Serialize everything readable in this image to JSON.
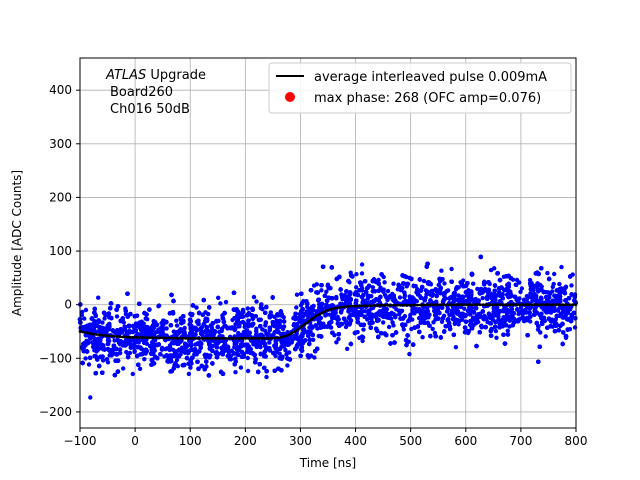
{
  "chart_data": {
    "type": "scatter",
    "xlabel": "Time [ns]",
    "ylabel": "Amplitude [ADC Counts]",
    "xlim": [
      -100,
      800
    ],
    "ylim": [
      -230,
      460
    ],
    "xticks": [
      -100,
      0,
      100,
      200,
      300,
      400,
      500,
      600,
      700,
      800
    ],
    "yticks": [
      -200,
      -100,
      0,
      100,
      200,
      300,
      400
    ],
    "xtick_labels": [
      "−100",
      "0",
      "100",
      "200",
      "300",
      "400",
      "500",
      "600",
      "700",
      "800"
    ],
    "ytick_labels": [
      "−200",
      "−100",
      "0",
      "100",
      "200",
      "300",
      "400"
    ],
    "grid": true,
    "legend_position": "top-right",
    "annotation": {
      "italic": "ATLAS",
      "rest": " Upgrade",
      "line2": "Board260",
      "line3": "Ch016 50dB"
    },
    "series": [
      {
        "name": "average interleaved pulse 0.009mA",
        "kind": "line",
        "color": "#000000",
        "x": [
          -100,
          -75,
          -50,
          -25,
          0,
          50,
          100,
          150,
          200,
          240,
          260,
          275,
          290,
          310,
          330,
          350,
          370,
          390,
          420,
          450,
          500,
          550,
          600,
          650,
          700,
          750,
          800
        ],
        "y": [
          -50,
          -55,
          -58,
          -60,
          -61,
          -62,
          -63,
          -63,
          -63,
          -63,
          -62,
          -58,
          -50,
          -35,
          -20,
          -10,
          -5,
          -3,
          -2,
          -1,
          -1,
          0,
          0,
          0,
          0,
          0,
          0
        ]
      },
      {
        "name": "max phase: 268 (OFC amp=0.076)",
        "kind": "marker",
        "color": "#ff0000",
        "x": [
          268
        ],
        "y": [
          -61
        ]
      },
      {
        "name": "",
        "kind": "scatter",
        "color": "#0000ff",
        "x_range": [
          -100,
          800
        ],
        "y_spread_range": [
          -200,
          130
        ]
      }
    ]
  }
}
